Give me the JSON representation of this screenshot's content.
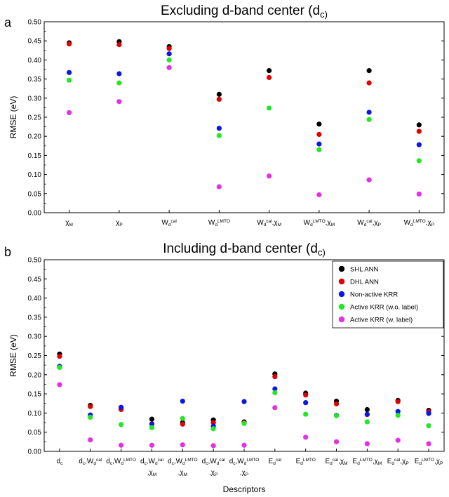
{
  "figure": {
    "panels": [
      "a",
      "b"
    ]
  },
  "legend": {
    "entries": [
      {
        "name": "SHL ANN",
        "color": "#000000"
      },
      {
        "name": "DHL ANN",
        "color": "#e00000"
      },
      {
        "name": "Non-active KRR",
        "color": "#0a18e6"
      },
      {
        "name": "Active KRR (w.o. label)",
        "color": "#22e822"
      },
      {
        "name": "Active KRR (w. label)",
        "color": "#e62ee6"
      }
    ]
  },
  "chart_data": [
    {
      "type": "scatter",
      "panel": "a",
      "title": "Excluding d-band center (d_c)",
      "xlabel": "",
      "ylabel": "RMSE (eV)",
      "ylim": [
        0,
        0.5
      ],
      "yticks": [
        "0.00",
        "0.05",
        "0.10",
        "0.15",
        "0.20",
        "0.25",
        "0.30",
        "0.35",
        "0.40",
        "0.45",
        "0.50"
      ],
      "categories": [
        "χ_M",
        "χ_P",
        "W_d^cal",
        "W_d^LMTO",
        "W_d^cal,χ_M",
        "W_d^LMTO,χ_M",
        "W_d^cal,χ_P",
        "W_d^LMTO,χ_P"
      ],
      "series": [
        {
          "name": "SHL ANN",
          "values": [
            0.445,
            0.448,
            0.435,
            0.31,
            0.372,
            0.232,
            0.372,
            0.23
          ]
        },
        {
          "name": "DHL ANN",
          "values": [
            0.442,
            0.44,
            0.43,
            0.297,
            0.354,
            0.205,
            0.34,
            0.213
          ]
        },
        {
          "name": "Non-active KRR",
          "values": [
            0.367,
            0.364,
            0.416,
            0.221,
            null,
            0.18,
            0.263,
            0.178
          ]
        },
        {
          "name": "Active KRR (w.o. label)",
          "values": [
            0.347,
            0.34,
            0.4,
            0.202,
            0.274,
            0.165,
            0.244,
            0.136
          ]
        },
        {
          "name": "Active KRR (w. label)",
          "values": [
            0.262,
            0.291,
            0.38,
            0.068,
            0.096,
            0.047,
            0.086,
            0.049
          ]
        }
      ]
    },
    {
      "type": "scatter",
      "panel": "b",
      "title": "Including d-band center (d_c)",
      "xlabel": "Descriptors",
      "ylabel": "RMSE (eV)",
      "ylim": [
        0,
        0.5
      ],
      "yticks": [
        "0.00",
        "0.05",
        "0.10",
        "0.15",
        "0.20",
        "0.25",
        "0.30",
        "0.35",
        "0.40",
        "0.45",
        "0.50"
      ],
      "legend_position": "top-right",
      "categories": [
        "d_c",
        "d_c,W_d^cal",
        "d_c,W_d^LMTO",
        "d_c,W_d^cal,χ_M",
        "d_c,W_d^LMTO,χ_M",
        "d_c,W_d^cal,χ_P",
        "d_c,W_d^LMTO,χ_P",
        "E_d^cal",
        "E_d^LMTO",
        "E_d^cal,χ_M",
        "E_d^LMTO,χ_M",
        "E_d^cal,χ_P",
        "E_d^LMTO,χ_P"
      ],
      "series": [
        {
          "name": "SHL ANN",
          "values": [
            0.254,
            0.12,
            0.113,
            0.084,
            0.075,
            0.082,
            0.077,
            0.202,
            0.152,
            0.131,
            0.109,
            0.133,
            0.107
          ]
        },
        {
          "name": "DHL ANN",
          "values": [
            0.248,
            0.117,
            0.109,
            0.072,
            0.071,
            0.075,
            0.075,
            0.195,
            0.147,
            0.124,
            0.096,
            0.13,
            0.103
          ]
        },
        {
          "name": "Non-active KRR",
          "values": [
            0.222,
            0.095,
            0.115,
            0.071,
            0.131,
            0.066,
            0.13,
            0.163,
            0.127,
            0.094,
            0.097,
            0.104,
            0.099
          ]
        },
        {
          "name": "Active KRR (w.o. label)",
          "values": [
            0.219,
            0.089,
            0.07,
            0.062,
            0.086,
            0.059,
            0.073,
            0.153,
            0.097,
            0.093,
            0.077,
            0.094,
            0.067
          ]
        },
        {
          "name": "Active KRR (w. label)",
          "values": [
            0.174,
            0.03,
            0.016,
            0.016,
            0.017,
            0.015,
            0.016,
            0.114,
            0.037,
            0.025,
            0.02,
            0.029,
            0.02
          ]
        }
      ]
    }
  ]
}
